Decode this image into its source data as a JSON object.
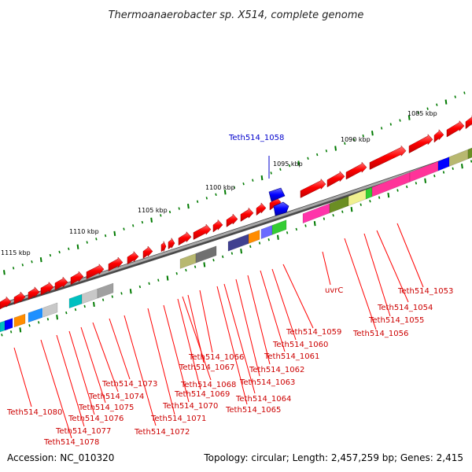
{
  "title": "Thermoanaerobacter sp. X514, complete genome",
  "footer": {
    "accession": "Accession: NC_010320",
    "topology": "Topology: circular; Length: 2,457,259 bp; Genes: 2,415"
  },
  "scale_labels": [
    "1085 kbp",
    "1090 kbp",
    "1095 kbp",
    "1100 kbp",
    "1105 kbp",
    "1110 kbp",
    "1115 kbp"
  ],
  "highlighted_gene": "Teth514_1058",
  "gene_labels": [
    "Teth514_1053",
    "Teth514_1054",
    "Teth514_1055",
    "Teth514_1056",
    "uvrC",
    "Teth514_1059",
    "Teth514_1060",
    "Teth514_1061",
    "Teth514_1062",
    "Teth514_1063",
    "Teth514_1064",
    "Teth514_1065",
    "Teth514_1066",
    "Teth514_1067",
    "Teth514_1068",
    "Teth514_1069",
    "Teth514_1070",
    "Teth514_1071",
    "Teth514_1072",
    "Teth514_1073",
    "Teth514_1074",
    "Teth514_1075",
    "Teth514_1076",
    "Teth514_1077",
    "Teth514_1078",
    "Teth514_1080"
  ],
  "colors": {
    "gene_red": "#ff0000",
    "highlight_blue": "#0000ff",
    "label_red": "#cc0000",
    "label_blue": "#0000cc",
    "backbone": "#808080",
    "tick_green": "#007a00"
  }
}
